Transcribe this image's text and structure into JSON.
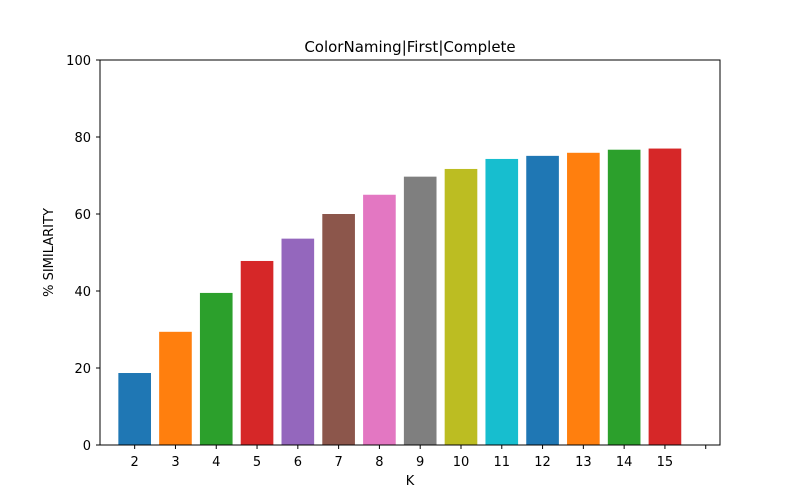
{
  "chart_data": {
    "type": "bar",
    "title": "ColorNaming|First|Complete",
    "xlabel": "K",
    "ylabel": "% SIMILARITY",
    "categories": [
      "2",
      "3",
      "4",
      "5",
      "6",
      "7",
      "8",
      "9",
      "10",
      "11",
      "12",
      "13",
      "14",
      "15"
    ],
    "x": [
      2,
      3,
      4,
      5,
      6,
      7,
      8,
      9,
      10,
      11,
      12,
      13,
      14,
      15
    ],
    "values": [
      18.7,
      29.4,
      39.5,
      47.8,
      53.6,
      60.0,
      65.0,
      69.7,
      71.7,
      74.3,
      75.1,
      75.9,
      76.7,
      77.0
    ],
    "colors": [
      "#1f77b4",
      "#ff7f0e",
      "#2ca02c",
      "#d62728",
      "#9467bd",
      "#8c564b",
      "#e377c2",
      "#7f7f7f",
      "#bcbd22",
      "#17becf",
      "#1f77b4",
      "#ff7f0e",
      "#2ca02c",
      "#d62728"
    ],
    "xlim": [
      1.15,
      16.35
    ],
    "ylim": [
      0,
      100
    ],
    "yticks": [
      0,
      20,
      40,
      60,
      80,
      100
    ],
    "grid": false,
    "legend": "none"
  }
}
